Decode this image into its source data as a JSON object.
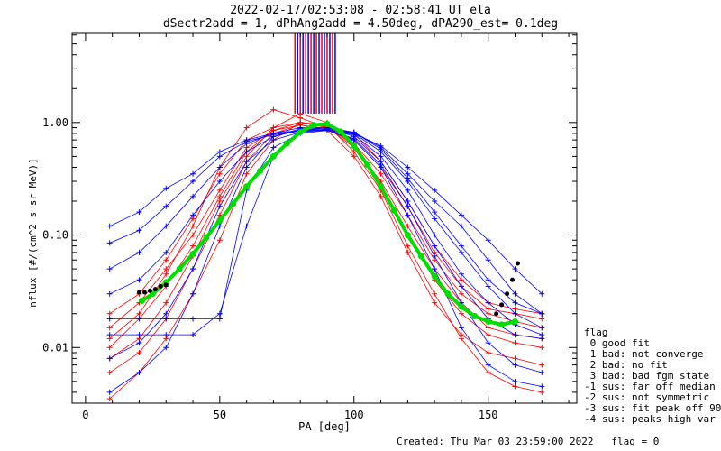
{
  "chart_data": {
    "type": "line",
    "title_line1": "2022-02-17/02:53:08 - 02:58:41 UT ela",
    "title_line2": "dSectr2add = 1, dPhAng2add = 4.50deg, dPA290_est=   0.1deg",
    "xlabel": "PA [deg]",
    "ylabel": "nflux [#/(cm^2 s sr MeV)]",
    "xlim": [
      -5,
      183
    ],
    "ylim": [
      0.0032,
      6.2
    ],
    "yscale": "log",
    "xticks": [
      0,
      50,
      100,
      150
    ],
    "xtick_labels": [
      "0",
      "50",
      "100",
      "150"
    ],
    "yticks": [
      0.01,
      0.1,
      1.0
    ],
    "ytick_labels": [
      "0.01",
      "0.10",
      "1.00"
    ],
    "grid": false,
    "colors": {
      "red": "#ff0000",
      "blue": "#0000ff",
      "green": "#00dd00",
      "black": "#000000"
    },
    "footer": "Created: Thu Mar 03 23:59:00 2022   flag = 0",
    "legend": {
      "placement": "right",
      "title": "flag",
      "entries": [
        " 0 good fit",
        " 1 bad: not converge",
        " 2 bad: no fit",
        " 3 bad: bad fgm state",
        "-1 sus: far off median",
        "-2 sus: not symmetric",
        "-3 sus: fit peak off 90",
        "-4 sus: peaks high var"
      ]
    },
    "series": [
      {
        "color": "red",
        "x": [
          9,
          20,
          30,
          40,
          50,
          60,
          70,
          80,
          90,
          100,
          110,
          120,
          130,
          140,
          150,
          160,
          170
        ],
        "y": [
          0.0035,
          0.006,
          0.012,
          0.03,
          0.09,
          0.35,
          0.7,
          1.0,
          0.95,
          0.55,
          0.25,
          0.08,
          0.03,
          0.012,
          0.006,
          0.0045,
          0.004
        ]
      },
      {
        "color": "red",
        "x": [
          9,
          20,
          30,
          40,
          50,
          60,
          70,
          80,
          90,
          100,
          110,
          120,
          130,
          140,
          150,
          160,
          170
        ],
        "y": [
          0.01,
          0.018,
          0.035,
          0.08,
          0.22,
          0.55,
          0.85,
          1.0,
          0.9,
          0.6,
          0.3,
          0.12,
          0.05,
          0.025,
          0.015,
          0.013,
          0.012
        ]
      },
      {
        "color": "red",
        "x": [
          9,
          20,
          30,
          40,
          50,
          60,
          70,
          80,
          90,
          100,
          110,
          120,
          130,
          140,
          150,
          160,
          170
        ],
        "y": [
          0.02,
          0.03,
          0.06,
          0.14,
          0.35,
          0.7,
          0.9,
          1.0,
          0.92,
          0.7,
          0.4,
          0.18,
          0.07,
          0.035,
          0.022,
          0.02,
          0.018
        ]
      },
      {
        "color": "red",
        "x": [
          9,
          20,
          30,
          40,
          50,
          60,
          70,
          80,
          90,
          100,
          110,
          120,
          130,
          140,
          150,
          160,
          170
        ],
        "y": [
          0.012,
          0.02,
          0.045,
          0.12,
          0.4,
          0.9,
          1.3,
          1.1,
          0.9,
          0.8,
          0.45,
          0.2,
          0.08,
          0.04,
          0.025,
          0.022,
          0.02
        ]
      },
      {
        "color": "red",
        "x": [
          9,
          20,
          30,
          40,
          50,
          60,
          70,
          80,
          90,
          100,
          110,
          120,
          130,
          140,
          150,
          160,
          170
        ],
        "y": [
          0.006,
          0.009,
          0.018,
          0.05,
          0.15,
          0.45,
          0.8,
          0.95,
          0.85,
          0.5,
          0.22,
          0.07,
          0.025,
          0.013,
          0.009,
          0.008,
          0.007
        ]
      },
      {
        "color": "red",
        "x": [
          9,
          20,
          30,
          40,
          50,
          60,
          70,
          80,
          90,
          100,
          110,
          120,
          130,
          140,
          150,
          160,
          170
        ],
        "y": [
          0.015,
          0.025,
          0.05,
          0.1,
          0.25,
          0.6,
          0.85,
          0.95,
          0.88,
          0.65,
          0.35,
          0.15,
          0.06,
          0.03,
          0.02,
          0.017,
          0.015
        ]
      },
      {
        "color": "red",
        "x": [
          9,
          20,
          30,
          40,
          50,
          60,
          70,
          80,
          90,
          100,
          110,
          120,
          130,
          140,
          150,
          160,
          170
        ],
        "y": [
          0.008,
          0.012,
          0.025,
          0.065,
          0.2,
          0.5,
          0.9,
          1.2,
          1.0,
          0.6,
          0.28,
          0.1,
          0.04,
          0.02,
          0.013,
          0.011,
          0.01
        ]
      },
      {
        "color": "blue",
        "x": [
          9,
          20,
          30,
          40,
          50,
          60,
          70,
          80,
          90,
          100,
          110,
          120,
          130,
          140,
          150,
          160,
          170
        ],
        "y": [
          0.12,
          0.16,
          0.26,
          0.35,
          0.55,
          0.7,
          0.8,
          0.85,
          0.88,
          0.82,
          0.6,
          0.35,
          0.2,
          0.12,
          0.06,
          0.03,
          0.02
        ]
      },
      {
        "color": "blue",
        "x": [
          9,
          20,
          30,
          40,
          50,
          60,
          70,
          80,
          90,
          100,
          110,
          120,
          130,
          140,
          150,
          160,
          170
        ],
        "y": [
          0.05,
          0.07,
          0.12,
          0.22,
          0.4,
          0.65,
          0.8,
          0.9,
          0.9,
          0.8,
          0.55,
          0.3,
          0.14,
          0.07,
          0.035,
          0.02,
          0.015
        ]
      },
      {
        "color": "blue",
        "x": [
          9,
          20,
          30,
          40,
          50,
          60,
          70,
          80,
          90,
          100,
          110,
          120,
          130,
          140,
          150,
          160,
          170
        ],
        "y": [
          0.013,
          0.013,
          0.013,
          0.013,
          0.02,
          0.12,
          0.5,
          0.85,
          0.9,
          0.75,
          0.45,
          0.2,
          0.08,
          0.035,
          0.018,
          0.013,
          0.012
        ]
      },
      {
        "color": "blue",
        "x": [
          9,
          20,
          30,
          40,
          50,
          60,
          70,
          80,
          90,
          100,
          110,
          120,
          130,
          140,
          150,
          160,
          170
        ],
        "y": [
          0.004,
          0.006,
          0.01,
          0.03,
          0.12,
          0.4,
          0.75,
          0.85,
          0.85,
          0.7,
          0.4,
          0.15,
          0.05,
          0.015,
          0.007,
          0.005,
          0.0045
        ]
      },
      {
        "color": "blue",
        "x": [
          9,
          20,
          30,
          40,
          50,
          60,
          70,
          80,
          90,
          100,
          110,
          120,
          130,
          140,
          150,
          160,
          170
        ],
        "y": [
          0.018,
          0.018,
          0.018,
          0.018,
          0.018,
          0.25,
          0.6,
          0.8,
          0.85,
          0.78,
          0.5,
          0.25,
          0.1,
          0.045,
          0.025,
          0.016,
          0.013
        ]
      },
      {
        "color": "blue",
        "x": [
          9,
          20,
          30,
          40,
          50,
          60,
          70,
          80,
          90,
          100,
          110,
          120,
          130,
          140,
          150,
          160,
          170
        ],
        "y": [
          0.03,
          0.04,
          0.07,
          0.15,
          0.3,
          0.55,
          0.75,
          0.88,
          0.9,
          0.82,
          0.58,
          0.32,
          0.16,
          0.08,
          0.04,
          0.025,
          0.02
        ]
      },
      {
        "color": "blue",
        "x": [
          9,
          20,
          30,
          40,
          50,
          60,
          70,
          80,
          90,
          100,
          110,
          120,
          130,
          140,
          150,
          160,
          170
        ],
        "y": [
          0.008,
          0.011,
          0.02,
          0.05,
          0.18,
          0.45,
          0.7,
          0.82,
          0.86,
          0.72,
          0.42,
          0.18,
          0.065,
          0.025,
          0.011,
          0.007,
          0.006
        ]
      },
      {
        "color": "blue",
        "x": [
          9,
          20,
          30,
          40,
          50,
          60,
          70,
          80,
          90,
          100,
          110,
          120,
          130,
          140,
          150,
          160,
          170
        ],
        "y": [
          0.085,
          0.11,
          0.18,
          0.3,
          0.5,
          0.68,
          0.78,
          0.84,
          0.86,
          0.8,
          0.62,
          0.4,
          0.25,
          0.15,
          0.09,
          0.05,
          0.03
        ]
      }
    ],
    "fit_green": {
      "color": "green",
      "x": [
        21,
        25,
        30,
        35,
        40,
        45,
        50,
        55,
        60,
        65,
        70,
        75,
        80,
        85,
        90,
        95,
        100,
        105,
        110,
        115,
        120,
        125,
        130,
        135,
        140,
        145,
        150,
        155,
        160
      ],
      "y": [
        0.026,
        0.03,
        0.038,
        0.05,
        0.068,
        0.095,
        0.135,
        0.19,
        0.27,
        0.37,
        0.5,
        0.65,
        0.82,
        0.95,
        0.97,
        0.83,
        0.62,
        0.42,
        0.27,
        0.165,
        0.1,
        0.065,
        0.043,
        0.03,
        0.023,
        0.019,
        0.017,
        0.016,
        0.017
      ]
    },
    "fit_black": [
      {
        "color": "black",
        "x": [
          20,
          22,
          24,
          26,
          28,
          30
        ],
        "y": [
          0.031,
          0.031,
          0.032,
          0.033,
          0.035,
          0.036
        ]
      },
      {
        "color": "black",
        "x": [
          153,
          155,
          157,
          159,
          161
        ],
        "y": [
          0.02,
          0.024,
          0.03,
          0.04,
          0.056
        ]
      }
    ],
    "vertical_bars": {
      "red_x": [
        78,
        80,
        82,
        84,
        86,
        88,
        90,
        92
      ],
      "blue_x": [
        79,
        81,
        83,
        85,
        87,
        89,
        91,
        93
      ],
      "y_from": 1.2,
      "y_to": 6.2
    }
  }
}
